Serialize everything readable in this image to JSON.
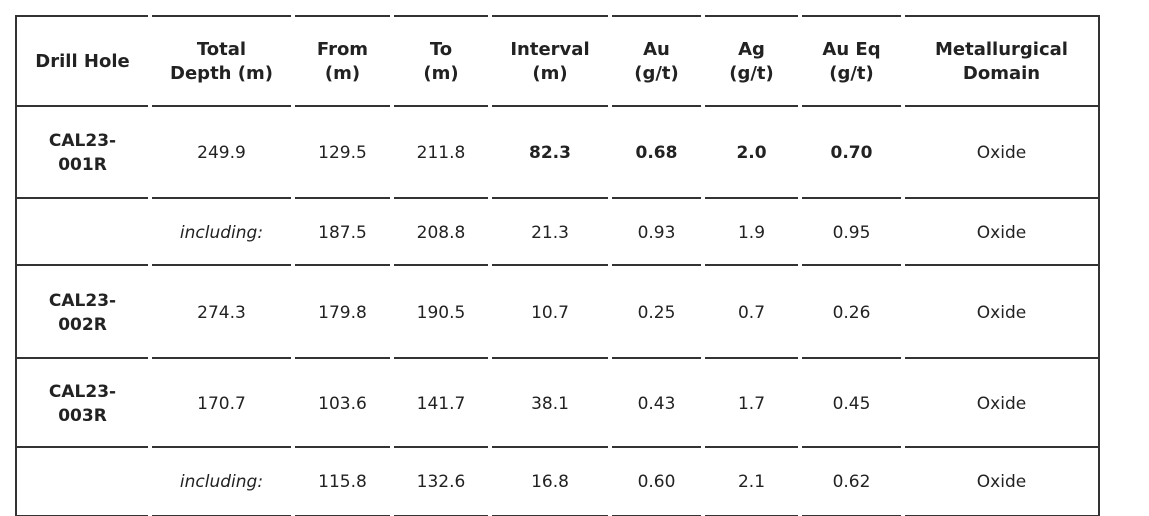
{
  "table": {
    "header": [
      [
        "Drill Hole"
      ],
      [
        "Total",
        "Depth (m)"
      ],
      [
        "From",
        "(m)"
      ],
      [
        "To",
        "(m)"
      ],
      [
        "Interval",
        "(m)"
      ],
      [
        "Au",
        "(g/t)"
      ],
      [
        "Ag",
        "(g/t)"
      ],
      [
        "Au Eq",
        "(g/t)"
      ],
      [
        "Metallurgical",
        "Domain"
      ]
    ],
    "rows": [
      [
        [
          "CAL23-",
          "001R"
        ],
        "249.9",
        "129.5",
        "211.8",
        "82.3",
        "0.68",
        "2.0",
        "0.70",
        "Oxide"
      ],
      [
        null,
        "including:",
        "187.5",
        "208.8",
        "21.3",
        "0.93",
        "1.9",
        "0.95",
        "Oxide"
      ],
      [
        [
          "CAL23-",
          "002R"
        ],
        "274.3",
        "179.8",
        "190.5",
        "10.7",
        "0.25",
        "0.7",
        "0.26",
        "Oxide"
      ],
      [
        [
          "CAL23-",
          "003R"
        ],
        "170.7",
        "103.6",
        "141.7",
        "38.1",
        "0.43",
        "1.7",
        "0.45",
        "Oxide"
      ],
      [
        null,
        "including:",
        "115.8",
        "132.6",
        "16.8",
        "0.60",
        "2.1",
        "0.62",
        "Oxide"
      ]
    ]
  }
}
